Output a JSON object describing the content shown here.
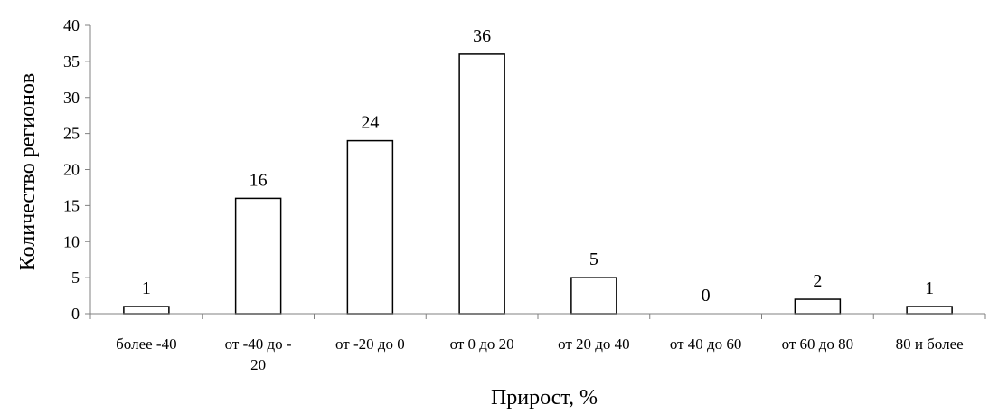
{
  "chart_data": {
    "type": "bar",
    "title": "",
    "xlabel": "Прирост, %",
    "ylabel": "Количество регионов",
    "categories": [
      [
        "более -40"
      ],
      [
        "от -40 до -",
        "20"
      ],
      [
        "от -20 до 0"
      ],
      [
        "от 0 до 20"
      ],
      [
        "от 20 до 40"
      ],
      [
        "от 40 до 60"
      ],
      [
        "от 60 до 80"
      ],
      [
        "80 и более"
      ]
    ],
    "values": [
      1,
      16,
      24,
      36,
      5,
      0,
      2,
      1
    ],
    "data_labels": [
      "1",
      "16",
      "24",
      "36",
      "5",
      "0",
      "2",
      "1"
    ],
    "ylim": [
      0,
      40
    ],
    "yticks": [
      0,
      5,
      10,
      15,
      20,
      25,
      30,
      35,
      40
    ],
    "grid": false,
    "legend": "none",
    "bar_fill": "#ffffff",
    "bar_stroke": "#000000",
    "axis_color": "#808080"
  }
}
